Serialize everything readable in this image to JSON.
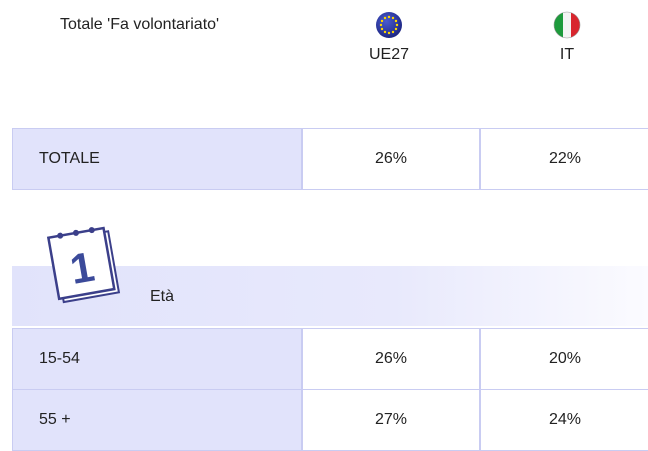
{
  "header": {
    "title": "Totale 'Fa volontariato'",
    "columns": [
      "UE27",
      "IT"
    ]
  },
  "table": {
    "rows": [
      [
        "TOTALE",
        "26%",
        "22%"
      ]
    ]
  },
  "sections": [
    {
      "label": "Età",
      "rows": [
        [
          "15-54",
          "26%",
          "20%"
        ],
        [
          "55 +",
          "27%",
          "24%"
        ]
      ]
    }
  ]
}
